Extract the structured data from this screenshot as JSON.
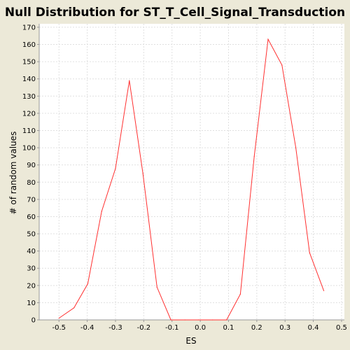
{
  "chart_data": {
    "type": "line",
    "title": "Null Distribution for ST_T_Cell_Signal_Transduction",
    "xlabel": "ES",
    "ylabel": "# of random values",
    "xlim": [
      -0.57,
      0.51
    ],
    "ylim": [
      0,
      172
    ],
    "x_ticks": [
      -0.5,
      -0.4,
      -0.3,
      -0.2,
      -0.1,
      0.0,
      0.1,
      0.2,
      0.3,
      0.4,
      0.5
    ],
    "x_tick_labels": [
      "-0.5",
      "-0.4",
      "-0.3",
      "-0.2",
      "-0.1",
      "0.0",
      "0.1",
      "0.2",
      "0.3",
      "0.4",
      "0.5"
    ],
    "y_ticks": [
      0,
      10,
      20,
      30,
      40,
      50,
      60,
      70,
      80,
      90,
      100,
      110,
      120,
      130,
      140,
      150,
      160,
      170
    ],
    "y_tick_labels": [
      "0",
      "10",
      "20",
      "30",
      "40",
      "50",
      "60",
      "70",
      "80",
      "90",
      "100",
      "110",
      "120",
      "130",
      "140",
      "150",
      "160",
      "170"
    ],
    "grid": true,
    "series": [
      {
        "x": [
          -0.5,
          -0.447,
          -0.398,
          -0.349,
          -0.3,
          -0.251,
          -0.203,
          -0.153,
          -0.104,
          -0.054,
          -0.006,
          0.044,
          0.093,
          0.142,
          0.191,
          0.24,
          0.289,
          0.338,
          0.387,
          0.437
        ],
        "y": [
          1,
          7,
          21,
          63,
          88,
          139,
          85,
          19,
          0,
          0,
          0,
          0,
          0,
          15,
          95,
          163,
          148,
          100,
          39,
          17
        ]
      }
    ]
  },
  "colors": {
    "background": "#ece9d8",
    "plot_background": "#ffffff",
    "line": "#ff3030",
    "grid": "#e0e0e0",
    "axis": "#999999",
    "text": "#000000"
  }
}
